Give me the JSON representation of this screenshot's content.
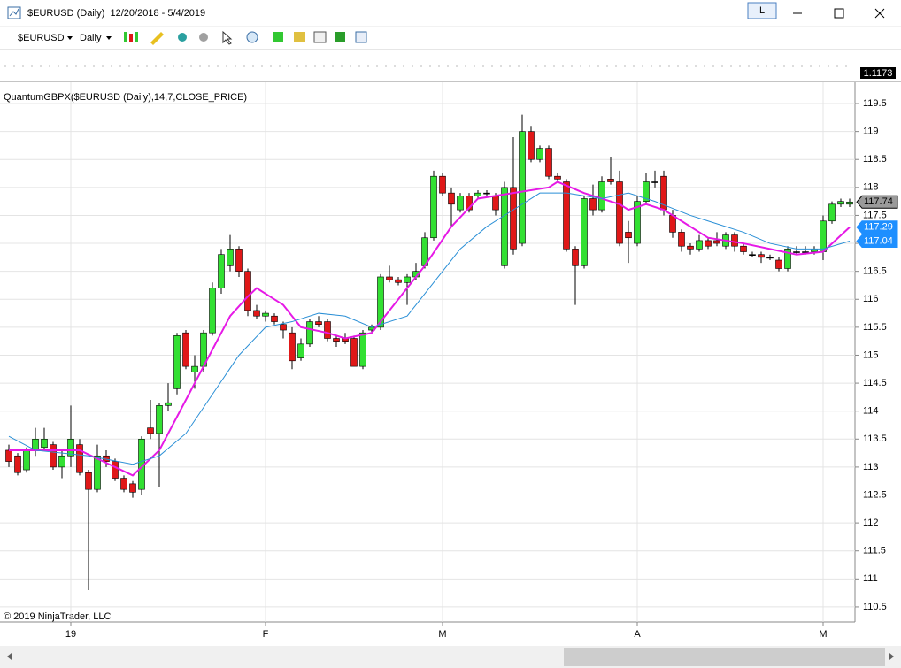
{
  "window": {
    "title": "$EURUSD (Daily)  12/20/2018 - 5/4/2019",
    "button": "L"
  },
  "toolbar": {
    "instrument": "$EURUSD",
    "interval": "Daily"
  },
  "overview": {
    "price_label": "1.1173"
  },
  "chart_data": {
    "type": "candlestick",
    "indicator_label": "QuantumGBPX($EURUSD (Daily),14,7,CLOSE_PRICE)",
    "copyright": "© 2019 NinjaTrader, LLC",
    "up_color": "#32e032",
    "down_color": "#e01818",
    "doji_color": "#000000",
    "open": [
      113.3,
      113.2,
      112.95,
      113.3,
      113.35,
      113.4,
      113.0,
      113.2,
      113.4,
      112.9,
      112.6,
      113.2,
      113.1,
      112.8,
      112.7,
      112.6,
      113.7,
      113.6,
      114.1,
      114.4,
      115.4,
      114.7,
      114.8,
      115.4,
      116.2,
      116.6,
      116.9,
      116.5,
      115.8,
      115.7,
      115.7,
      115.55,
      115.4,
      114.95,
      115.2,
      115.6,
      115.6,
      115.3,
      115.3,
      115.3,
      114.8,
      115.45,
      115.5,
      116.4,
      116.35,
      116.3,
      116.4,
      116.6,
      117.1,
      118.2,
      117.9,
      117.6,
      117.85,
      117.85,
      117.9,
      117.85,
      116.6,
      118.0,
      117.0,
      119.0,
      118.5,
      118.7,
      118.2,
      118.1,
      116.9,
      116.6,
      117.8,
      117.6,
      118.15,
      118.1,
      117.2,
      117.0,
      117.75,
      118.1,
      118.2,
      117.5,
      117.2,
      116.95,
      116.9,
      117.05,
      117.05,
      116.95,
      117.15,
      116.95,
      116.8,
      116.8,
      116.75,
      116.7,
      116.55,
      116.85,
      116.85,
      116.85,
      116.85,
      117.4,
      117.7,
      117.7
    ],
    "high": [
      113.4,
      113.25,
      113.35,
      113.7,
      113.7,
      113.45,
      113.3,
      114.1,
      113.5,
      112.95,
      113.4,
      113.3,
      113.15,
      112.85,
      112.75,
      113.55,
      114.2,
      114.15,
      114.5,
      115.4,
      115.45,
      115.0,
      115.45,
      116.3,
      116.9,
      117.15,
      116.95,
      116.55,
      115.9,
      115.8,
      115.75,
      115.6,
      115.5,
      115.3,
      115.65,
      115.7,
      115.65,
      115.35,
      115.4,
      115.35,
      115.45,
      115.55,
      116.45,
      116.6,
      116.4,
      116.45,
      116.65,
      117.2,
      118.3,
      118.25,
      118.0,
      117.9,
      117.9,
      117.95,
      117.95,
      117.9,
      118.1,
      118.9,
      119.3,
      119.1,
      118.75,
      118.75,
      118.25,
      118.15,
      116.95,
      117.85,
      118.05,
      118.2,
      118.55,
      118.3,
      117.4,
      117.85,
      118.25,
      118.3,
      118.3,
      117.6,
      117.25,
      117.0,
      117.15,
      117.1,
      117.2,
      117.2,
      117.2,
      117.0,
      116.85,
      116.85,
      116.8,
      116.75,
      116.95,
      116.95,
      116.95,
      116.95,
      117.5,
      117.75,
      117.8,
      117.8
    ],
    "low": [
      113.0,
      112.85,
      112.9,
      113.2,
      113.3,
      112.95,
      112.8,
      113.0,
      112.85,
      110.8,
      112.55,
      113.0,
      112.75,
      112.55,
      112.45,
      112.5,
      113.5,
      112.65,
      114.0,
      114.3,
      114.75,
      114.4,
      114.7,
      115.35,
      116.1,
      116.5,
      116.4,
      115.7,
      115.65,
      115.6,
      115.55,
      115.3,
      114.75,
      114.9,
      115.15,
      115.5,
      115.25,
      115.15,
      115.2,
      114.8,
      114.75,
      115.4,
      115.45,
      116.3,
      116.25,
      115.9,
      116.35,
      116.55,
      117.05,
      117.85,
      117.3,
      117.55,
      117.55,
      117.8,
      117.85,
      117.5,
      116.55,
      116.8,
      116.95,
      118.45,
      118.45,
      118.15,
      118.1,
      116.85,
      115.9,
      116.55,
      117.5,
      117.55,
      118.05,
      116.95,
      116.65,
      116.95,
      117.7,
      118.0,
      117.5,
      117.1,
      116.85,
      116.8,
      116.85,
      116.9,
      116.95,
      116.9,
      116.85,
      116.8,
      116.75,
      116.65,
      116.7,
      116.5,
      116.5,
      116.8,
      116.8,
      116.8,
      116.7,
      117.35,
      117.65,
      117.65
    ],
    "close": [
      113.1,
      112.9,
      113.3,
      113.5,
      113.5,
      113.0,
      113.2,
      113.5,
      112.9,
      112.6,
      113.2,
      113.1,
      112.8,
      112.6,
      112.55,
      113.5,
      113.6,
      114.1,
      114.15,
      115.35,
      114.8,
      114.8,
      115.4,
      116.2,
      116.8,
      116.9,
      116.5,
      115.8,
      115.7,
      115.75,
      115.6,
      115.45,
      114.9,
      115.2,
      115.6,
      115.55,
      115.3,
      115.25,
      115.25,
      114.8,
      115.4,
      115.5,
      116.4,
      116.35,
      116.3,
      116.4,
      116.5,
      117.1,
      118.2,
      117.9,
      117.7,
      117.85,
      117.6,
      117.9,
      117.9,
      117.6,
      118.0,
      116.9,
      119.0,
      118.5,
      118.7,
      118.2,
      118.15,
      116.9,
      116.6,
      117.8,
      117.6,
      118.1,
      118.1,
      117.0,
      117.1,
      117.75,
      118.1,
      118.1,
      117.6,
      117.2,
      116.95,
      116.9,
      117.05,
      116.95,
      117.0,
      117.15,
      116.95,
      116.85,
      116.8,
      116.75,
      116.75,
      116.55,
      116.9,
      116.85,
      116.85,
      116.9,
      117.4,
      117.7,
      117.75,
      117.74
    ],
    "lines": [
      {
        "color": "#e619e6",
        "x": [
          0,
          8,
          14,
          17,
          19,
          22,
          25,
          27,
          28,
          31,
          33,
          36,
          38,
          41,
          44,
          47,
          50,
          53,
          57,
          61,
          62,
          65,
          69,
          70,
          72,
          74,
          77,
          79,
          83,
          86,
          89,
          92,
          95
        ],
        "values": [
          113.3,
          113.3,
          112.85,
          113.3,
          113.9,
          114.8,
          115.7,
          116.05,
          116.2,
          115.9,
          115.5,
          115.4,
          115.3,
          115.4,
          116.0,
          116.6,
          117.3,
          117.8,
          117.9,
          118.0,
          118.1,
          117.9,
          117.7,
          117.6,
          117.7,
          117.6,
          117.3,
          117.1,
          117.0,
          116.9,
          116.8,
          116.85,
          117.29
        ]
      },
      {
        "color": "#2a8fd6",
        "x": [
          0,
          3,
          9,
          14,
          17,
          20,
          23,
          26,
          29,
          32,
          35,
          38,
          41,
          45,
          48,
          51,
          54,
          57,
          60,
          63,
          67,
          70,
          73,
          77,
          79,
          83,
          86,
          89,
          92,
          95
        ],
        "values": [
          113.55,
          113.3,
          113.2,
          113.05,
          113.2,
          113.6,
          114.3,
          115.0,
          115.5,
          115.6,
          115.75,
          115.7,
          115.5,
          115.7,
          116.3,
          116.9,
          117.3,
          117.6,
          117.9,
          117.9,
          117.8,
          117.9,
          117.75,
          117.5,
          117.4,
          117.2,
          117.0,
          116.9,
          116.9,
          117.04
        ]
      }
    ],
    "price_markers": {
      "values": [
        117.74,
        117.29,
        117.04
      ],
      "colors": [
        "#9a9a9a",
        "#1e8fff",
        "#1e8fff"
      ]
    },
    "xlim": [
      -1,
      95.6
    ],
    "xticks": [
      {
        "value": 7,
        "label": "19"
      },
      {
        "value": 29,
        "label": "F"
      },
      {
        "value": 49,
        "label": "M"
      },
      {
        "value": 71,
        "label": "A"
      },
      {
        "value": 92,
        "label": "M"
      }
    ],
    "ylim": [
      110.23,
      119.88
    ],
    "yticks": [
      110.5,
      111,
      111.5,
      112,
      112.5,
      113,
      113.5,
      114,
      114.5,
      115,
      115.5,
      116,
      116.5,
      117,
      117.5,
      118,
      118.5,
      119,
      119.5
    ],
    "grid": true
  }
}
